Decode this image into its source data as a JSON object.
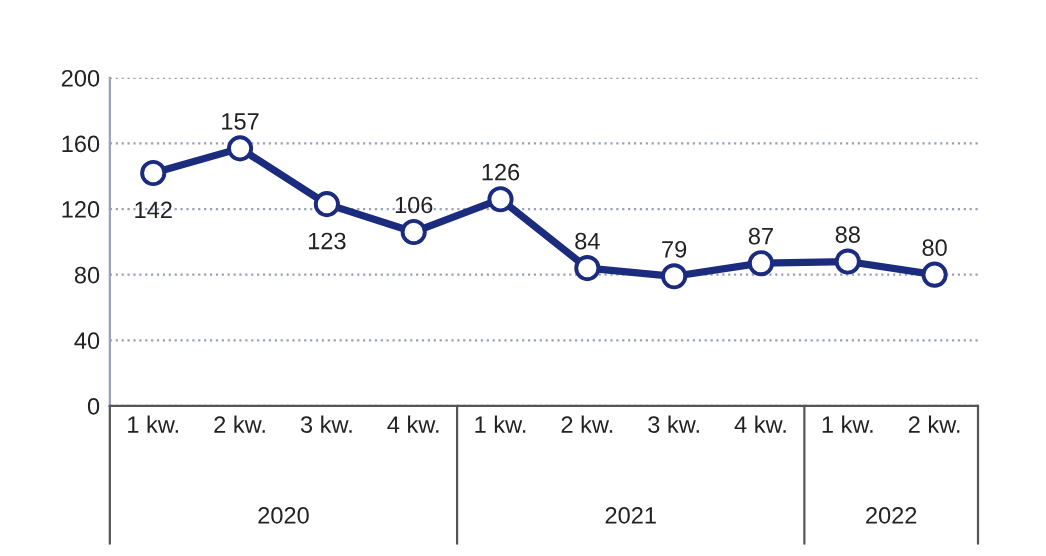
{
  "chart_data": {
    "type": "line",
    "categories": [
      "1 kw.",
      "2 kw.",
      "3 kw.",
      "4 kw.",
      "1 kw.",
      "2 kw.",
      "3 kw.",
      "4 kw.",
      "1 kw.",
      "2 kw."
    ],
    "series": [
      {
        "color": "#1b2b7e",
        "values": [
          142,
          157,
          123,
          106,
          126,
          84,
          79,
          87,
          88,
          80
        ]
      }
    ],
    "ylim": [
      0,
      200
    ],
    "yticks": [
      0,
      40,
      80,
      120,
      160,
      200
    ],
    "grid": "y",
    "marker": "circle",
    "line_style": "solid",
    "data_labels": true,
    "annotations": [
      "2020",
      "2021",
      "2022"
    ]
  }
}
